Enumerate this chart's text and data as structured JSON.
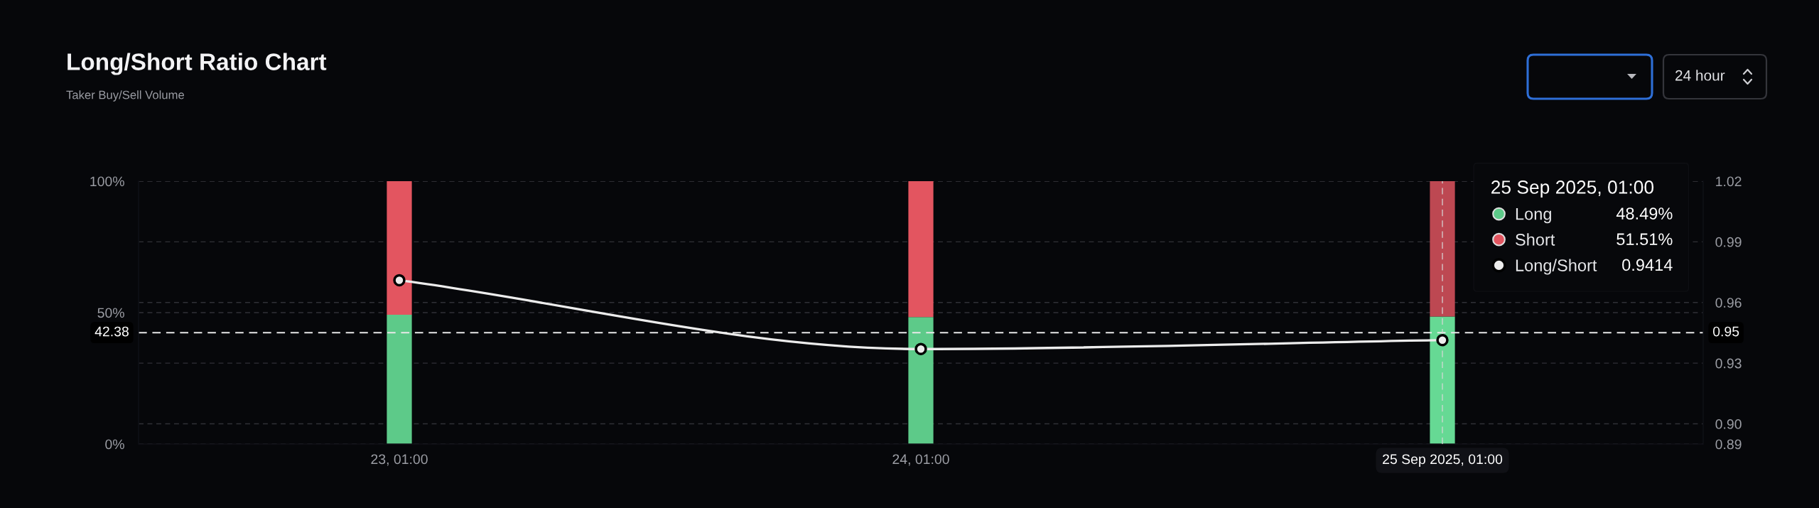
{
  "chart_data": {
    "type": "bar",
    "title": "Long/Short Ratio Chart",
    "subtitle": "Taker Buy/Sell Volume",
    "categories": [
      "23, 01:00",
      "24, 01:00",
      "25 Sep 2025, 01:00"
    ],
    "stacked": true,
    "series": [
      {
        "name": "Long",
        "colors": [
          "#5dca89",
          "#5dca89",
          "#66d994"
        ],
        "values": [
          49.2,
          48.3,
          48.49
        ]
      },
      {
        "name": "Short",
        "colors": [
          "#e35560",
          "#e35560",
          "#bd4852"
        ],
        "values": [
          50.8,
          51.7,
          51.51
        ]
      },
      {
        "name": "Long/Short",
        "type": "line",
        "axis": "y2",
        "color": "#ececec",
        "marker": "circle",
        "values": [
          0.971,
          0.937,
          0.9414
        ]
      }
    ],
    "ylim": [
      0,
      100
    ],
    "yticks": [
      {
        "value": 0,
        "label": "0%"
      },
      {
        "value": 50,
        "label": "50%"
      },
      {
        "value": 100,
        "label": "100%"
      }
    ],
    "y2lim": [
      0.89,
      1.02
    ],
    "y2ticks": [
      0.89,
      {
        "value": 0.9,
        "label": "0.90"
      },
      0.93,
      0.96,
      0.99,
      1.02
    ],
    "grid": true,
    "legend": "top right",
    "legend_title": "25 Sep 2025, 01:00",
    "ref_lines": [
      {
        "axis": "y",
        "value": 42.38,
        "label": "42.38",
        "color": "#e8e8e8",
        "line_style": "dashed"
      },
      {
        "axis": "x",
        "value": "25 Sep 2025, 01:00",
        "color": "#d8d8d8",
        "line_style": "dashed"
      }
    ],
    "annotations": [
      "24 hour",
      "48.49%",
      "51.51%",
      "0.9414",
      "0.95"
    ]
  }
}
